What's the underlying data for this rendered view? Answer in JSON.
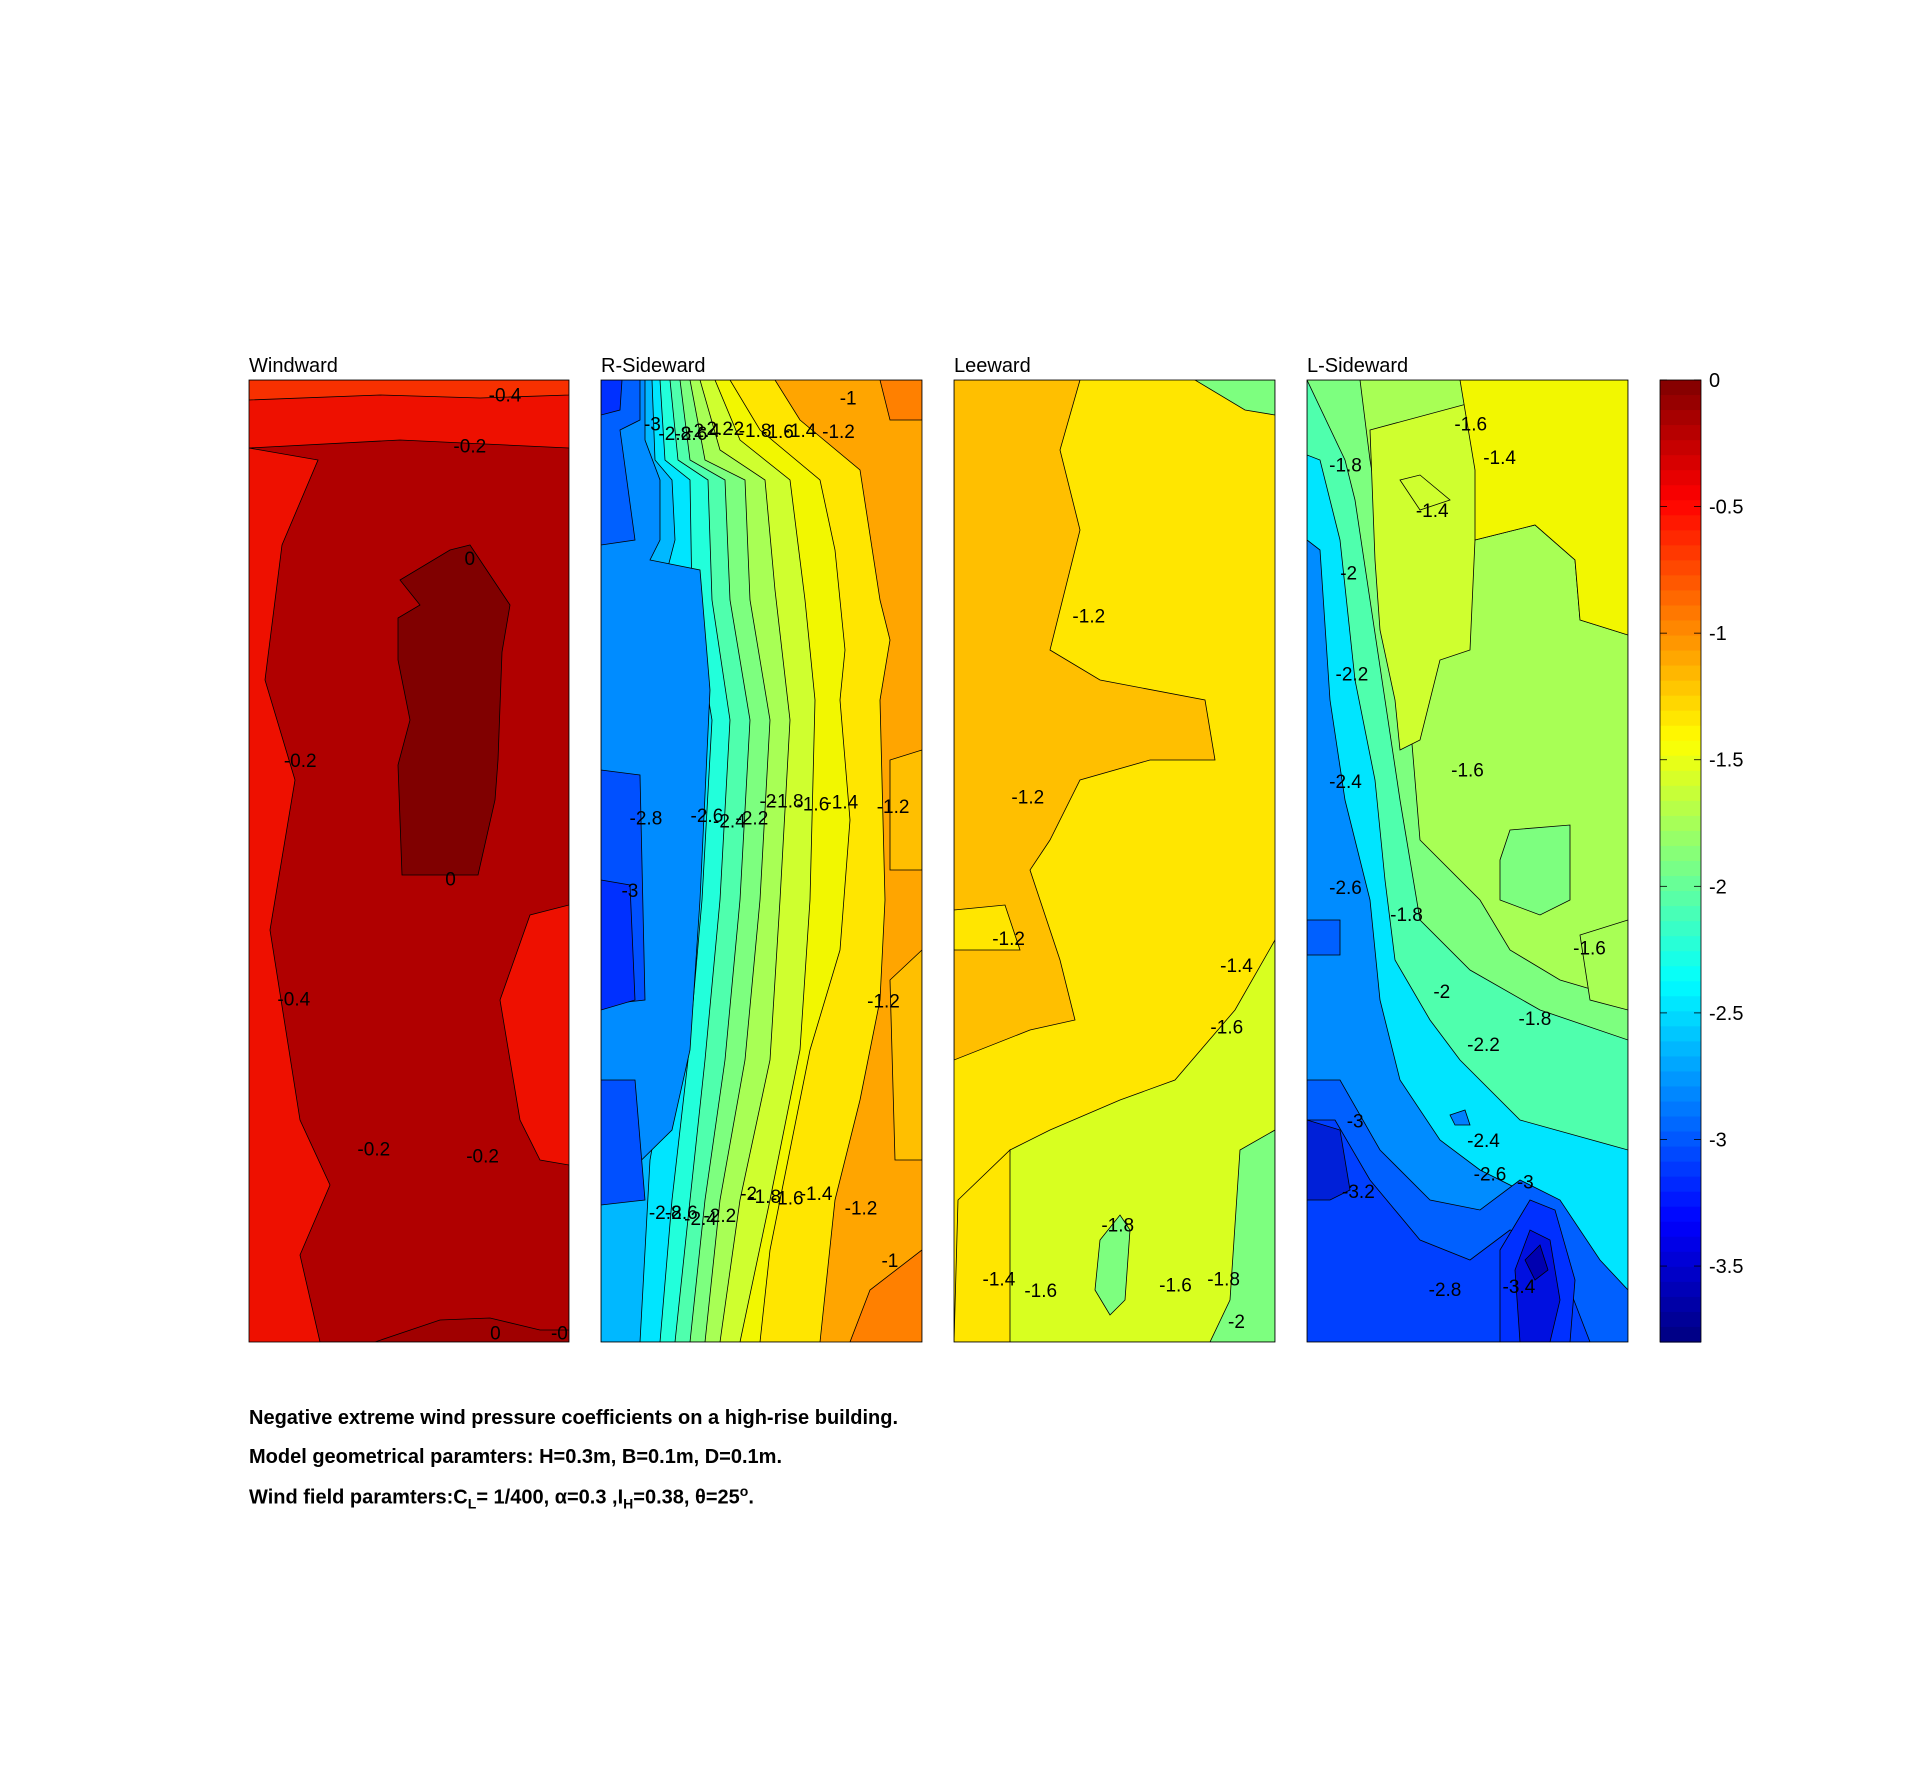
{
  "chart_data": {
    "type": "heatmap",
    "subplots": [
      {
        "title": "Windward",
        "contour_labels": [
          {
            "value": "-0.4",
            "x": 0.8,
            "y": 0.015
          },
          {
            "value": "-0.2",
            "x": 0.69,
            "y": 0.068
          },
          {
            "value": "0",
            "x": 0.69,
            "y": 0.185
          },
          {
            "value": "-0.2",
            "x": 0.16,
            "y": 0.395
          },
          {
            "value": "0",
            "x": 0.63,
            "y": 0.518
          },
          {
            "value": "-0.4",
            "x": 0.14,
            "y": 0.643
          },
          {
            "value": "-0.2",
            "x": 0.39,
            "y": 0.799
          },
          {
            "value": "-0.2",
            "x": 0.73,
            "y": 0.806
          },
          {
            "value": "0",
            "x": 0.77,
            "y": 0.99
          },
          {
            "value": "-0",
            "x": 0.97,
            "y": 0.99
          }
        ]
      },
      {
        "title": "R-Sideward",
        "contour_labels": [
          {
            "value": "-3",
            "x": 0.16,
            "y": 0.045
          },
          {
            "value": "-2.8",
            "x": 0.23,
            "y": 0.055
          },
          {
            "value": "-2.6",
            "x": 0.28,
            "y": 0.055
          },
          {
            "value": "-2.4",
            "x": 0.32,
            "y": 0.052
          },
          {
            "value": "-2.2",
            "x": 0.36,
            "y": 0.05
          },
          {
            "value": "-2",
            "x": 0.42,
            "y": 0.05
          },
          {
            "value": "-1.8",
            "x": 0.48,
            "y": 0.052
          },
          {
            "value": "-1.6",
            "x": 0.55,
            "y": 0.053
          },
          {
            "value": "-1.4",
            "x": 0.62,
            "y": 0.052
          },
          {
            "value": "-1.2",
            "x": 0.74,
            "y": 0.053
          },
          {
            "value": "-1",
            "x": 0.77,
            "y": 0.018
          },
          {
            "value": "-2.8",
            "x": 0.14,
            "y": 0.455
          },
          {
            "value": "-2.6",
            "x": 0.33,
            "y": 0.452
          },
          {
            "value": "-2.4",
            "x": 0.4,
            "y": 0.458
          },
          {
            "value": "-2.2",
            "x": 0.47,
            "y": 0.455
          },
          {
            "value": "-2",
            "x": 0.52,
            "y": 0.437
          },
          {
            "value": "-1.8",
            "x": 0.58,
            "y": 0.437
          },
          {
            "value": "-1.6",
            "x": 0.66,
            "y": 0.44
          },
          {
            "value": "-1.4",
            "x": 0.75,
            "y": 0.438
          },
          {
            "value": "-1.2",
            "x": 0.91,
            "y": 0.443
          },
          {
            "value": "-3",
            "x": 0.09,
            "y": 0.53
          },
          {
            "value": "-1.2",
            "x": 0.88,
            "y": 0.645
          },
          {
            "value": "-2.8",
            "x": 0.2,
            "y": 0.865
          },
          {
            "value": "-2.6",
            "x": 0.25,
            "y": 0.865
          },
          {
            "value": "-2.4",
            "x": 0.31,
            "y": 0.871
          },
          {
            "value": "-2.2",
            "x": 0.37,
            "y": 0.868
          },
          {
            "value": "-2",
            "x": 0.46,
            "y": 0.845
          },
          {
            "value": "-1.8",
            "x": 0.51,
            "y": 0.848
          },
          {
            "value": "-1.6",
            "x": 0.58,
            "y": 0.85
          },
          {
            "value": "-1.4",
            "x": 0.67,
            "y": 0.845
          },
          {
            "value": "-1.2",
            "x": 0.81,
            "y": 0.86
          },
          {
            "value": "-1",
            "x": 0.9,
            "y": 0.915
          }
        ]
      },
      {
        "title": "Leeward",
        "contour_labels": [
          {
            "value": "-1.2",
            "x": 0.42,
            "y": 0.245
          },
          {
            "value": "-1.2",
            "x": 0.23,
            "y": 0.433
          },
          {
            "value": "-1.2",
            "x": 0.17,
            "y": 0.58
          },
          {
            "value": "-1.4",
            "x": 0.88,
            "y": 0.608
          },
          {
            "value": "-1.6",
            "x": 0.85,
            "y": 0.672
          },
          {
            "value": "-1.8",
            "x": 0.51,
            "y": 0.878
          },
          {
            "value": "-1.4",
            "x": 0.14,
            "y": 0.934
          },
          {
            "value": "-1.6",
            "x": 0.27,
            "y": 0.946
          },
          {
            "value": "-1.6",
            "x": 0.69,
            "y": 0.94
          },
          {
            "value": "-1.8",
            "x": 0.84,
            "y": 0.934
          },
          {
            "value": "-2",
            "x": 0.88,
            "y": 0.978
          }
        ]
      },
      {
        "title": "L-Sideward",
        "contour_labels": [
          {
            "value": "-1.6",
            "x": 0.51,
            "y": 0.045
          },
          {
            "value": "-1.4",
            "x": 0.6,
            "y": 0.08
          },
          {
            "value": "-1.8",
            "x": 0.12,
            "y": 0.088
          },
          {
            "value": "-1.4",
            "x": 0.39,
            "y": 0.135
          },
          {
            "value": "-2",
            "x": 0.13,
            "y": 0.2
          },
          {
            "value": "-2.2",
            "x": 0.14,
            "y": 0.305
          },
          {
            "value": "-2.4",
            "x": 0.12,
            "y": 0.417
          },
          {
            "value": "-1.6",
            "x": 0.5,
            "y": 0.405
          },
          {
            "value": "-2.6",
            "x": 0.12,
            "y": 0.527
          },
          {
            "value": "-1.8",
            "x": 0.31,
            "y": 0.555
          },
          {
            "value": "-1.6",
            "x": 0.88,
            "y": 0.59
          },
          {
            "value": "-2",
            "x": 0.42,
            "y": 0.635
          },
          {
            "value": "-1.8",
            "x": 0.71,
            "y": 0.663
          },
          {
            "value": "-2.2",
            "x": 0.55,
            "y": 0.69
          },
          {
            "value": "-3",
            "x": 0.15,
            "y": 0.77
          },
          {
            "value": "-2.4",
            "x": 0.55,
            "y": 0.79
          },
          {
            "value": "-2.6",
            "x": 0.57,
            "y": 0.825
          },
          {
            "value": "-3",
            "x": 0.68,
            "y": 0.833
          },
          {
            "value": "-3.2",
            "x": 0.16,
            "y": 0.843
          },
          {
            "value": "-2.8",
            "x": 0.43,
            "y": 0.945
          },
          {
            "value": "-3.4",
            "x": 0.66,
            "y": 0.942
          }
        ]
      }
    ],
    "colorbar": {
      "ticks": [
        "0",
        "-0.5",
        "-1",
        "-1.5",
        "-2",
        "-2.5",
        "-3",
        "-3.5"
      ],
      "range": [
        -3.8,
        0
      ],
      "colormap": "jet"
    },
    "caption": {
      "line1": "Negative extreme wind pressure coefficients on a high-rise building.",
      "line2": "Model geometrical paramters: H=0.3m, B=0.1m, D=0.1m.",
      "line3_a": "Wind field paramters:C",
      "line3_sub1": "L",
      "line3_b": "= 1/400, α=0.3 ,I",
      "line3_sub2": "H",
      "line3_c": "=0.38, θ=25",
      "line3_sup": "o",
      "line3_d": "."
    }
  }
}
